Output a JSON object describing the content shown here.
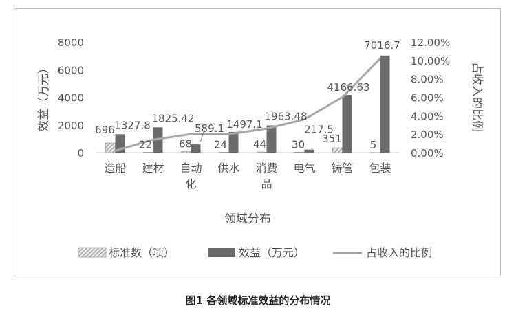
{
  "chart_data": {
    "type": "bar",
    "categories": [
      "造船",
      "建材",
      "自动\n化",
      "供水",
      "消费\n品",
      "电气",
      "铸管",
      "包装"
    ],
    "series": [
      {
        "name": "标准数（项）",
        "kind": "bar",
        "axis": "left",
        "pattern": "hatch",
        "color": "#b0b0b0",
        "values": [
          696,
          22,
          68,
          24,
          44,
          30,
          351,
          5
        ],
        "labels": [
          "696",
          "22",
          "68",
          "24",
          "44",
          "30",
          "351",
          "5"
        ]
      },
      {
        "name": "效益（万元）",
        "kind": "bar",
        "axis": "left",
        "pattern": "solid",
        "color": "#6b6b6b",
        "values": [
          1327.8,
          1825.42,
          589.1,
          1497.1,
          1963.48,
          217.5,
          4166.63,
          7016.7
        ],
        "labels": [
          "1327.8",
          "1825.42",
          "589.1",
          "1497.1",
          "1963.48",
          "217.5",
          "4166.63",
          "7016.7"
        ]
      },
      {
        "name": "占收入的比例",
        "kind": "line",
        "axis": "right",
        "color": "#a6a6a6",
        "values": [
          0.2,
          1.4,
          2.0,
          2.0,
          2.6,
          3.6,
          6.0,
          10.2
        ]
      }
    ],
    "ylabel": "效益（万元）",
    "y2label": "占收入的比例",
    "xlabel": "领域分布",
    "ylim": [
      0,
      8000
    ],
    "yticks": [
      "0",
      "2000",
      "4000",
      "6000",
      "8000"
    ],
    "y2lim": [
      0,
      12
    ],
    "y2ticks": [
      "0.00%",
      "2.00%",
      "4.00%",
      "6.00%",
      "8.00%",
      "10.00%",
      "12.00%"
    ],
    "grid": false,
    "legend_position": "bottom"
  },
  "caption": "图1  各领域标准效益的分布情况"
}
